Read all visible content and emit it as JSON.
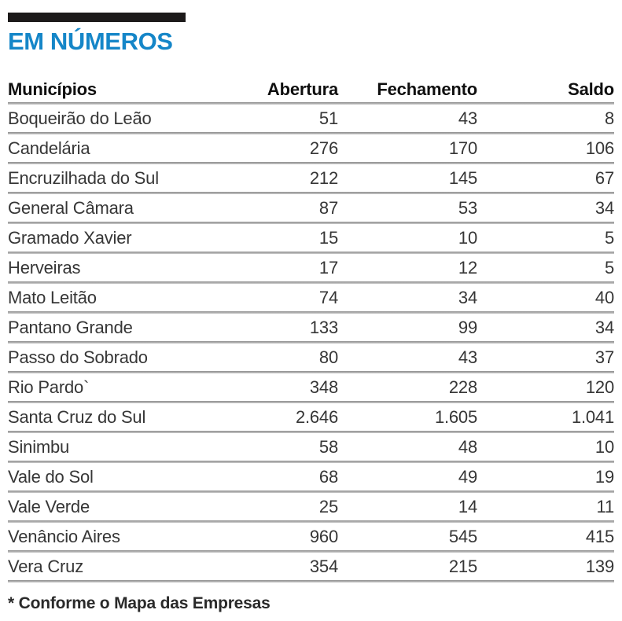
{
  "header": {
    "title": "EM NÚMEROS"
  },
  "footnote": "* Conforme o Mapa das Empresas",
  "colors": {
    "accent_blue": "#1586c8",
    "bar_black": "#1c1a1a",
    "separator_gray": "#9a9a9a",
    "header_text": "#0f0f0f",
    "body_text": "#363636"
  },
  "chart_data": {
    "type": "table",
    "title": "EM NÚMEROS",
    "columns": [
      "Municípios",
      "Abertura",
      "Fechamento",
      "Saldo"
    ],
    "rows": [
      {
        "municipio": "Boqueirão do Leão",
        "abertura": 51,
        "fechamento": 43,
        "saldo": 8
      },
      {
        "municipio": "Candelária",
        "abertura": 276,
        "fechamento": 170,
        "saldo": 106
      },
      {
        "municipio": "Encruzilhada do Sul",
        "abertura": 212,
        "fechamento": 145,
        "saldo": 67
      },
      {
        "municipio": "General Câmara",
        "abertura": 87,
        "fechamento": 53,
        "saldo": 34
      },
      {
        "municipio": "Gramado Xavier",
        "abertura": 15,
        "fechamento": 10,
        "saldo": 5
      },
      {
        "municipio": "Herveiras",
        "abertura": 17,
        "fechamento": 12,
        "saldo": 5
      },
      {
        "municipio": "Mato Leitão",
        "abertura": 74,
        "fechamento": 34,
        "saldo": 40
      },
      {
        "municipio": "Pantano Grande",
        "abertura": 133,
        "fechamento": 99,
        "saldo": 34
      },
      {
        "municipio": "Passo do Sobrado",
        "abertura": 80,
        "fechamento": 43,
        "saldo": 37
      },
      {
        "municipio": "Rio Pardo`",
        "abertura": 348,
        "fechamento": 228,
        "saldo": 120
      },
      {
        "municipio": "Santa Cruz do Sul",
        "abertura": 2646,
        "fechamento": 1605,
        "saldo": 1041
      },
      {
        "municipio": "Sinimbu",
        "abertura": 58,
        "fechamento": 48,
        "saldo": 10
      },
      {
        "municipio": "Vale do Sol",
        "abertura": 68,
        "fechamento": 49,
        "saldo": 19
      },
      {
        "municipio": "Vale Verde",
        "abertura": 25,
        "fechamento": 14,
        "saldo": 11
      },
      {
        "municipio": "Venâncio Aires",
        "abertura": 960,
        "fechamento": 545,
        "saldo": 415
      },
      {
        "municipio": "Vera Cruz",
        "abertura": 354,
        "fechamento": 215,
        "saldo": 139
      }
    ],
    "footnote": "* Conforme o Mapa das Empresas",
    "number_format": "thousands separated by dot (pt-BR)"
  }
}
